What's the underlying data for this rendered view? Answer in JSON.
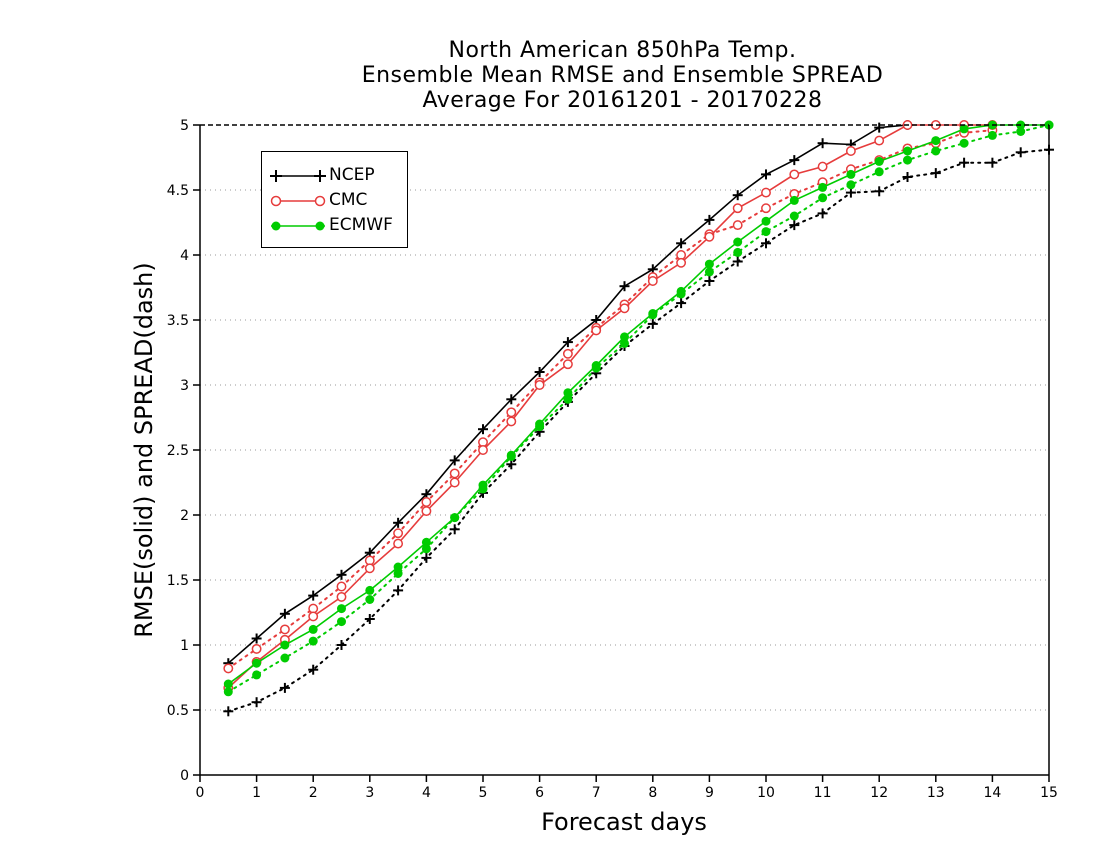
{
  "chart_data": {
    "type": "line",
    "title": [
      "North American 850hPa Temp.",
      "Ensemble Mean RMSE and Ensemble SPREAD",
      "Average For 20161201 - 20170228"
    ],
    "xlabel": "Forecast days",
    "ylabel": "RMSE(solid) and SPREAD(dash)",
    "xlim": [
      0,
      15
    ],
    "ylim": [
      0,
      5
    ],
    "xticks": [
      "0",
      "1",
      "2",
      "3",
      "4",
      "5",
      "6",
      "7",
      "8",
      "9",
      "10",
      "11",
      "12",
      "13",
      "14",
      "15"
    ],
    "yticks": [
      "0",
      "0.5",
      "1",
      "1.5",
      "2",
      "2.5",
      "3",
      "3.5",
      "4",
      "4.5",
      "5"
    ],
    "grid": "dotted horizontal",
    "legend_position": "top-left",
    "series": [
      {
        "name": "NCEP",
        "color": "#000000",
        "marker": "plus",
        "rmse": {
          "x": [
            0.5,
            1,
            1.5,
            2,
            2.5,
            3,
            3.5,
            4,
            4.5,
            5,
            5.5,
            6,
            6.5,
            7,
            7.5,
            8,
            8.5,
            9,
            9.5,
            10,
            10.5,
            11,
            11.5,
            12,
            12.5
          ],
          "y": [
            0.86,
            1.05,
            1.24,
            1.38,
            1.54,
            1.71,
            1.94,
            2.16,
            2.42,
            2.66,
            2.89,
            3.1,
            3.33,
            3.5,
            3.76,
            3.89,
            4.09,
            4.27,
            4.46,
            4.62,
            4.73,
            4.86,
            4.85,
            4.98,
            5.0
          ]
        },
        "spread": {
          "x": [
            0.5,
            1,
            1.5,
            2,
            2.5,
            3,
            3.5,
            4,
            4.5,
            5,
            5.5,
            6,
            6.5,
            7,
            7.5,
            8,
            8.5,
            9,
            9.5,
            10,
            10.5,
            11,
            11.5,
            12,
            12.5,
            13,
            13.5,
            14,
            14.5,
            15
          ],
          "y": [
            0.49,
            0.56,
            0.67,
            0.81,
            1.0,
            1.2,
            1.42,
            1.67,
            1.89,
            2.17,
            2.39,
            2.64,
            2.87,
            3.09,
            3.3,
            3.47,
            3.63,
            3.8,
            3.95,
            4.09,
            4.23,
            4.32,
            4.48,
            4.49,
            4.6,
            4.63,
            4.71,
            4.71,
            4.79,
            4.81
          ]
        }
      },
      {
        "name": "CMC",
        "color": "#e63c3c",
        "marker": "open-circle",
        "rmse": {
          "x": [
            0.5,
            1,
            1.5,
            2,
            2.5,
            3,
            3.5,
            4,
            4.5,
            5,
            5.5,
            6,
            6.5,
            7,
            7.5,
            8,
            8.5,
            9,
            9.5,
            10,
            10.5,
            11,
            11.5,
            12,
            12.5,
            13,
            13.5,
            14
          ],
          "y": [
            0.67,
            0.87,
            1.04,
            1.22,
            1.37,
            1.59,
            1.78,
            2.03,
            2.25,
            2.5,
            2.72,
            3.0,
            3.16,
            3.42,
            3.59,
            3.8,
            3.94,
            4.14,
            4.36,
            4.48,
            4.62,
            4.68,
            4.8,
            4.88,
            5.0,
            5.0,
            5.0,
            5.0
          ]
        },
        "spread": {
          "x": [
            0.5,
            1,
            1.5,
            2,
            2.5,
            3,
            3.5,
            4,
            4.5,
            5,
            5.5,
            6,
            6.5,
            7,
            7.5,
            8,
            8.5,
            9,
            9.5,
            10,
            10.5,
            11,
            11.5,
            12,
            12.5,
            13,
            13.5,
            14
          ],
          "y": [
            0.82,
            0.97,
            1.12,
            1.28,
            1.45,
            1.65,
            1.86,
            2.1,
            2.32,
            2.56,
            2.79,
            3.02,
            3.24,
            3.44,
            3.62,
            3.83,
            4.0,
            4.16,
            4.23,
            4.36,
            4.47,
            4.56,
            4.66,
            4.73,
            4.82,
            4.86,
            4.94,
            4.96
          ]
        }
      },
      {
        "name": "ECMWF",
        "color": "#00cc00",
        "marker": "filled-circle",
        "rmse": {
          "x": [
            0.5,
            1,
            1.5,
            2,
            2.5,
            3,
            3.5,
            4,
            4.5,
            5,
            5.5,
            6,
            6.5,
            7,
            7.5,
            8,
            8.5,
            9,
            9.5,
            10,
            10.5,
            11,
            11.5,
            12,
            12.5,
            13,
            13.5,
            14,
            14.5,
            15
          ],
          "y": [
            0.7,
            0.86,
            1.0,
            1.12,
            1.28,
            1.42,
            1.6,
            1.79,
            1.98,
            2.23,
            2.46,
            2.7,
            2.94,
            3.15,
            3.37,
            3.55,
            3.72,
            3.93,
            4.1,
            4.26,
            4.42,
            4.52,
            4.62,
            4.72,
            4.8,
            4.88,
            4.97,
            5.0,
            5.0,
            5.0
          ]
        },
        "spread": {
          "x": [
            0.5,
            1,
            1.5,
            2,
            2.5,
            3,
            3.5,
            4,
            4.5,
            5,
            5.5,
            6,
            6.5,
            7,
            7.5,
            8,
            8.5,
            9,
            9.5,
            10,
            10.5,
            11,
            11.5,
            12,
            12.5,
            13,
            13.5,
            14,
            14.5,
            15
          ],
          "y": [
            0.64,
            0.77,
            0.9,
            1.03,
            1.18,
            1.35,
            1.55,
            1.74,
            1.98,
            2.2,
            2.45,
            2.68,
            2.89,
            3.13,
            3.32,
            3.54,
            3.7,
            3.87,
            4.02,
            4.18,
            4.3,
            4.44,
            4.54,
            4.64,
            4.73,
            4.8,
            4.86,
            4.92,
            4.95,
            5.0
          ]
        }
      }
    ]
  }
}
